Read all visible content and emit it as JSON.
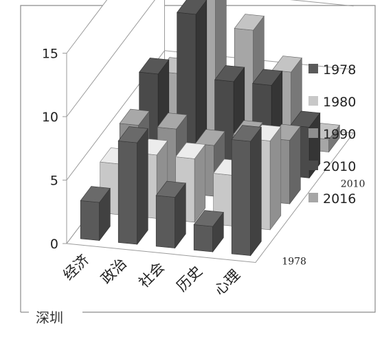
{
  "chart_data": {
    "type": "bar",
    "subtype": "3d-column",
    "categories": [
      "经济",
      "政治",
      "社会",
      "历史",
      "心理"
    ],
    "series": [
      {
        "name": "1978",
        "color": "#5a5a5a",
        "values": [
          3,
          8,
          4,
          2,
          9
        ]
      },
      {
        "name": "1980",
        "color": "#c8c8c8",
        "values": [
          4,
          5,
          5,
          4,
          7
        ]
      },
      {
        "name": "1990",
        "color": "#8e8e8e",
        "values": [
          5,
          5,
          4,
          5,
          5
        ]
      },
      {
        "name": "2010",
        "color": "#4a4a4a",
        "values": [
          7,
          12,
          7,
          7,
          4
        ]
      },
      {
        "name": "2016",
        "color": "#a6a6a6",
        "values": [
          5,
          13,
          9,
          6,
          1
        ]
      }
    ],
    "yticks": [
      "0",
      "5",
      "10",
      "15"
    ],
    "ylim": [
      0,
      15
    ],
    "depth_labels": [
      "1978",
      "2010"
    ],
    "legend": [
      "1978",
      "1980",
      "1990",
      "2010",
      "2016"
    ],
    "legend_position": "right",
    "grid": true
  },
  "panel_label": "深圳"
}
